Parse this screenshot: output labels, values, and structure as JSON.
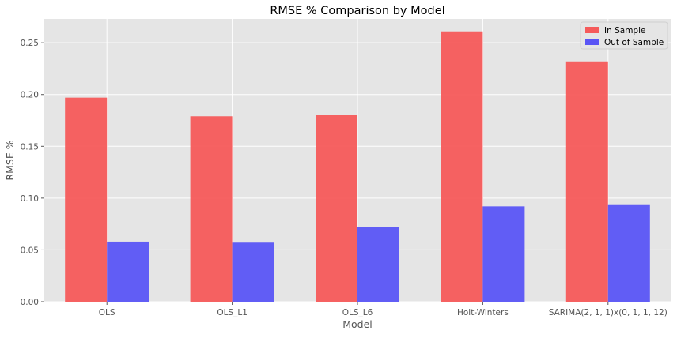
{
  "chart_data": {
    "type": "bar",
    "title": "RMSE % Comparison by Model",
    "xlabel": "Model",
    "ylabel": "RMSE %",
    "categories": [
      "OLS",
      "OLS_L1",
      "OLS_L6",
      "Holt-Winters",
      "SARIMA(2, 1, 1)x(0, 1, 1, 12)"
    ],
    "series": [
      {
        "name": "In Sample",
        "color": "#f55a5a",
        "values": [
          0.197,
          0.179,
          0.18,
          0.261,
          0.232
        ]
      },
      {
        "name": "Out of Sample",
        "color": "#5a55f5",
        "values": [
          0.058,
          0.057,
          0.072,
          0.092,
          0.094
        ]
      }
    ],
    "ylim": [
      0,
      0.273
    ],
    "yticks": [
      0.0,
      0.05,
      0.1,
      0.15,
      0.2,
      0.25
    ],
    "ytick_labels": [
      "0.00",
      "0.05",
      "0.10",
      "0.15",
      "0.20",
      "0.25"
    ],
    "grid": true,
    "legend_position": "top-right",
    "colors": {
      "background": "#e5e5e5",
      "grid": "#ffffff",
      "text": "#555555",
      "title": "#000000"
    }
  }
}
